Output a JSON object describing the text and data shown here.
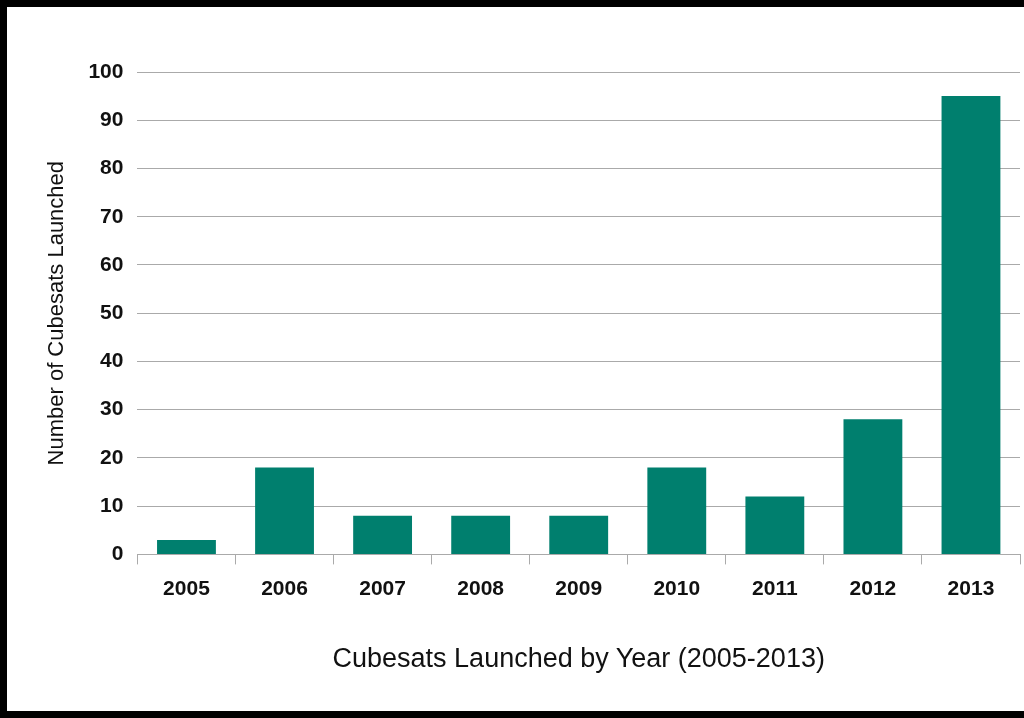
{
  "chart_data": {
    "type": "bar",
    "xlabel": "Cubesats Launched by Year (2005-2013)",
    "ylabel": "Number of Cubesats Launched",
    "categories": [
      "2005",
      "2006",
      "2007",
      "2008",
      "2009",
      "2010",
      "2011",
      "2012",
      "2013"
    ],
    "values": [
      3,
      18,
      8,
      8,
      8,
      18,
      12,
      28,
      95
    ],
    "color": "#007f6e",
    "ylim": [
      0,
      100
    ],
    "yticks": [
      0,
      10,
      20,
      30,
      40,
      50,
      60,
      70,
      80,
      90,
      100
    ],
    "grid": "y",
    "legend": false
  }
}
